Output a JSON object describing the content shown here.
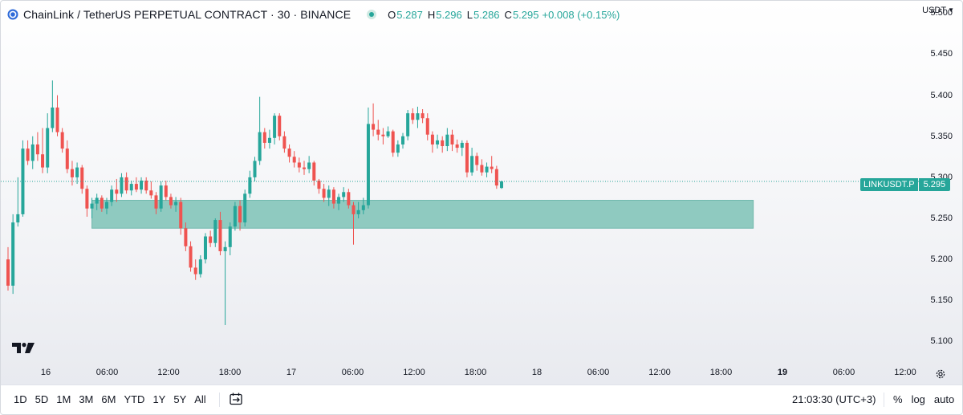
{
  "header": {
    "title": "ChainLink / TetherUS PERPETUAL CONTRACT · 30 · BINANCE",
    "ohlc": {
      "o_label": "O",
      "o": "5.287",
      "h_label": "H",
      "h": "5.296",
      "l_label": "L",
      "l": "5.286",
      "c_label": "C",
      "c": "5.295",
      "change": "+0.008 (+0.15%)"
    },
    "currency": "USDT",
    "currency_chevron": "chevron-down-icon"
  },
  "price_axis": {
    "labels": [
      "5.500",
      "5.450",
      "5.400",
      "5.350",
      "5.300",
      "5.250",
      "5.200",
      "5.150",
      "5.100"
    ]
  },
  "symbol_tag": {
    "name": "LINKUSDT.P",
    "price": "5.295"
  },
  "time_axis": {
    "labels": [
      "16",
      "06:00",
      "12:00",
      "18:00",
      "17",
      "06:00",
      "12:00",
      "18:00",
      "18",
      "06:00",
      "12:00",
      "18:00",
      "19",
      "06:00",
      "12:00"
    ],
    "bold": [
      "19"
    ]
  },
  "bottom_bar": {
    "ranges": [
      "1D",
      "5D",
      "1M",
      "3M",
      "6M",
      "YTD",
      "1Y",
      "5Y",
      "All"
    ],
    "clock": "21:03:30 (UTC+3)",
    "percent": "%",
    "log": "log",
    "auto": "auto"
  },
  "colors": {
    "up": "#26a69a",
    "down": "#ef5350",
    "zone": "#8fcac0",
    "background_top": "#ffffff",
    "background_bottom": "#e6e8ee"
  },
  "chart_data": {
    "type": "candlestick",
    "symbol": "LINKUSDT.P",
    "interval": "30",
    "ylim": [
      5.075,
      5.515
    ],
    "last_price": 5.295,
    "zone": {
      "price_low": 5.238,
      "price_high": 5.272,
      "start_bar": 17,
      "end_bar": 151
    },
    "candles": [
      {
        "o": 5.2,
        "h": 5.215,
        "l": 5.162,
        "c": 5.168
      },
      {
        "o": 5.168,
        "h": 5.255,
        "l": 5.158,
        "c": 5.245
      },
      {
        "o": 5.245,
        "h": 5.3,
        "l": 5.24,
        "c": 5.255
      },
      {
        "o": 5.255,
        "h": 5.345,
        "l": 5.252,
        "c": 5.335
      },
      {
        "o": 5.335,
        "h": 5.345,
        "l": 5.315,
        "c": 5.32
      },
      {
        "o": 5.32,
        "h": 5.35,
        "l": 5.31,
        "c": 5.34
      },
      {
        "o": 5.34,
        "h": 5.355,
        "l": 5.32,
        "c": 5.328
      },
      {
        "o": 5.328,
        "h": 5.36,
        "l": 5.305,
        "c": 5.312
      },
      {
        "o": 5.312,
        "h": 5.378,
        "l": 5.305,
        "c": 5.36
      },
      {
        "o": 5.36,
        "h": 5.418,
        "l": 5.355,
        "c": 5.385
      },
      {
        "o": 5.385,
        "h": 5.4,
        "l": 5.35,
        "c": 5.355
      },
      {
        "o": 5.355,
        "h": 5.36,
        "l": 5.33,
        "c": 5.335
      },
      {
        "o": 5.335,
        "h": 5.345,
        "l": 5.305,
        "c": 5.31
      },
      {
        "o": 5.31,
        "h": 5.32,
        "l": 5.29,
        "c": 5.3
      },
      {
        "o": 5.3,
        "h": 5.318,
        "l": 5.292,
        "c": 5.312
      },
      {
        "o": 5.312,
        "h": 5.315,
        "l": 5.28,
        "c": 5.286
      },
      {
        "o": 5.286,
        "h": 5.29,
        "l": 5.252,
        "c": 5.262
      },
      {
        "o": 5.262,
        "h": 5.275,
        "l": 5.25,
        "c": 5.268
      },
      {
        "o": 5.268,
        "h": 5.28,
        "l": 5.26,
        "c": 5.275
      },
      {
        "o": 5.275,
        "h": 5.278,
        "l": 5.258,
        "c": 5.262
      },
      {
        "o": 5.262,
        "h": 5.275,
        "l": 5.255,
        "c": 5.27
      },
      {
        "o": 5.27,
        "h": 5.29,
        "l": 5.265,
        "c": 5.285
      },
      {
        "o": 5.285,
        "h": 5.298,
        "l": 5.27,
        "c": 5.28
      },
      {
        "o": 5.28,
        "h": 5.305,
        "l": 5.276,
        "c": 5.3
      },
      {
        "o": 5.3,
        "h": 5.306,
        "l": 5.28,
        "c": 5.284
      },
      {
        "o": 5.284,
        "h": 5.296,
        "l": 5.278,
        "c": 5.292
      },
      {
        "o": 5.292,
        "h": 5.3,
        "l": 5.282,
        "c": 5.285
      },
      {
        "o": 5.285,
        "h": 5.3,
        "l": 5.28,
        "c": 5.296
      },
      {
        "o": 5.296,
        "h": 5.3,
        "l": 5.28,
        "c": 5.284
      },
      {
        "o": 5.284,
        "h": 5.295,
        "l": 5.274,
        "c": 5.278
      },
      {
        "o": 5.278,
        "h": 5.282,
        "l": 5.255,
        "c": 5.262
      },
      {
        "o": 5.262,
        "h": 5.295,
        "l": 5.258,
        "c": 5.29
      },
      {
        "o": 5.29,
        "h": 5.296,
        "l": 5.272,
        "c": 5.276
      },
      {
        "o": 5.276,
        "h": 5.28,
        "l": 5.262,
        "c": 5.266
      },
      {
        "o": 5.266,
        "h": 5.276,
        "l": 5.258,
        "c": 5.27
      },
      {
        "o": 5.27,
        "h": 5.275,
        "l": 5.23,
        "c": 5.238
      },
      {
        "o": 5.238,
        "h": 5.245,
        "l": 5.21,
        "c": 5.216
      },
      {
        "o": 5.216,
        "h": 5.222,
        "l": 5.185,
        "c": 5.19
      },
      {
        "o": 5.19,
        "h": 5.2,
        "l": 5.175,
        "c": 5.182
      },
      {
        "o": 5.182,
        "h": 5.205,
        "l": 5.178,
        "c": 5.2
      },
      {
        "o": 5.2,
        "h": 5.232,
        "l": 5.195,
        "c": 5.228
      },
      {
        "o": 5.228,
        "h": 5.235,
        "l": 5.215,
        "c": 5.22
      },
      {
        "o": 5.22,
        "h": 5.25,
        "l": 5.215,
        "c": 5.248
      },
      {
        "o": 5.248,
        "h": 5.258,
        "l": 5.205,
        "c": 5.21
      },
      {
        "o": 5.21,
        "h": 5.222,
        "l": 5.12,
        "c": 5.215
      },
      {
        "o": 5.215,
        "h": 5.245,
        "l": 5.205,
        "c": 5.24
      },
      {
        "o": 5.24,
        "h": 5.27,
        "l": 5.235,
        "c": 5.265
      },
      {
        "o": 5.265,
        "h": 5.272,
        "l": 5.235,
        "c": 5.245
      },
      {
        "o": 5.245,
        "h": 5.285,
        "l": 5.24,
        "c": 5.28
      },
      {
        "o": 5.28,
        "h": 5.308,
        "l": 5.275,
        "c": 5.3
      },
      {
        "o": 5.3,
        "h": 5.325,
        "l": 5.295,
        "c": 5.32
      },
      {
        "o": 5.32,
        "h": 5.398,
        "l": 5.315,
        "c": 5.355
      },
      {
        "o": 5.355,
        "h": 5.36,
        "l": 5.335,
        "c": 5.342
      },
      {
        "o": 5.342,
        "h": 5.358,
        "l": 5.335,
        "c": 5.348
      },
      {
        "o": 5.348,
        "h": 5.378,
        "l": 5.34,
        "c": 5.375
      },
      {
        "o": 5.375,
        "h": 5.378,
        "l": 5.345,
        "c": 5.35
      },
      {
        "o": 5.35,
        "h": 5.356,
        "l": 5.33,
        "c": 5.335
      },
      {
        "o": 5.335,
        "h": 5.34,
        "l": 5.318,
        "c": 5.325
      },
      {
        "o": 5.325,
        "h": 5.332,
        "l": 5.312,
        "c": 5.318
      },
      {
        "o": 5.318,
        "h": 5.324,
        "l": 5.306,
        "c": 5.312
      },
      {
        "o": 5.312,
        "h": 5.32,
        "l": 5.303,
        "c": 5.31
      },
      {
        "o": 5.31,
        "h": 5.326,
        "l": 5.305,
        "c": 5.318
      },
      {
        "o": 5.318,
        "h": 5.32,
        "l": 5.29,
        "c": 5.296
      },
      {
        "o": 5.296,
        "h": 5.298,
        "l": 5.28,
        "c": 5.286
      },
      {
        "o": 5.286,
        "h": 5.292,
        "l": 5.27,
        "c": 5.275
      },
      {
        "o": 5.275,
        "h": 5.29,
        "l": 5.265,
        "c": 5.285
      },
      {
        "o": 5.285,
        "h": 5.288,
        "l": 5.262,
        "c": 5.268
      },
      {
        "o": 5.268,
        "h": 5.28,
        "l": 5.26,
        "c": 5.276
      },
      {
        "o": 5.276,
        "h": 5.288,
        "l": 5.27,
        "c": 5.282
      },
      {
        "o": 5.282,
        "h": 5.286,
        "l": 5.262,
        "c": 5.266
      },
      {
        "o": 5.266,
        "h": 5.27,
        "l": 5.218,
        "c": 5.255
      },
      {
        "o": 5.255,
        "h": 5.27,
        "l": 5.25,
        "c": 5.26
      },
      {
        "o": 5.26,
        "h": 5.275,
        "l": 5.255,
        "c": 5.266
      },
      {
        "o": 5.266,
        "h": 5.385,
        "l": 5.262,
        "c": 5.365
      },
      {
        "o": 5.365,
        "h": 5.39,
        "l": 5.35,
        "c": 5.358
      },
      {
        "o": 5.358,
        "h": 5.37,
        "l": 5.345,
        "c": 5.352
      },
      {
        "o": 5.352,
        "h": 5.36,
        "l": 5.34,
        "c": 5.35
      },
      {
        "o": 5.35,
        "h": 5.362,
        "l": 5.348,
        "c": 5.356
      },
      {
        "o": 5.356,
        "h": 5.358,
        "l": 5.325,
        "c": 5.33
      },
      {
        "o": 5.33,
        "h": 5.345,
        "l": 5.325,
        "c": 5.34
      },
      {
        "o": 5.34,
        "h": 5.354,
        "l": 5.335,
        "c": 5.35
      },
      {
        "o": 5.35,
        "h": 5.382,
        "l": 5.345,
        "c": 5.378
      },
      {
        "o": 5.378,
        "h": 5.384,
        "l": 5.365,
        "c": 5.37
      },
      {
        "o": 5.37,
        "h": 5.386,
        "l": 5.36,
        "c": 5.378
      },
      {
        "o": 5.378,
        "h": 5.383,
        "l": 5.366,
        "c": 5.372
      },
      {
        "o": 5.372,
        "h": 5.378,
        "l": 5.345,
        "c": 5.352
      },
      {
        "o": 5.352,
        "h": 5.356,
        "l": 5.33,
        "c": 5.34
      },
      {
        "o": 5.34,
        "h": 5.352,
        "l": 5.335,
        "c": 5.345
      },
      {
        "o": 5.345,
        "h": 5.35,
        "l": 5.33,
        "c": 5.338
      },
      {
        "o": 5.338,
        "h": 5.36,
        "l": 5.332,
        "c": 5.352
      },
      {
        "o": 5.352,
        "h": 5.358,
        "l": 5.332,
        "c": 5.34
      },
      {
        "o": 5.34,
        "h": 5.346,
        "l": 5.33,
        "c": 5.336
      },
      {
        "o": 5.336,
        "h": 5.345,
        "l": 5.326,
        "c": 5.342
      },
      {
        "o": 5.342,
        "h": 5.345,
        "l": 5.3,
        "c": 5.306
      },
      {
        "o": 5.306,
        "h": 5.336,
        "l": 5.302,
        "c": 5.326
      },
      {
        "o": 5.326,
        "h": 5.33,
        "l": 5.308,
        "c": 5.315
      },
      {
        "o": 5.315,
        "h": 5.322,
        "l": 5.302,
        "c": 5.306
      },
      {
        "o": 5.306,
        "h": 5.318,
        "l": 5.3,
        "c": 5.313
      },
      {
        "o": 5.313,
        "h": 5.326,
        "l": 5.305,
        "c": 5.31
      },
      {
        "o": 5.31,
        "h": 5.314,
        "l": 5.286,
        "c": 5.29
      },
      {
        "o": 5.287,
        "h": 5.296,
        "l": 5.286,
        "c": 5.295
      }
    ]
  }
}
